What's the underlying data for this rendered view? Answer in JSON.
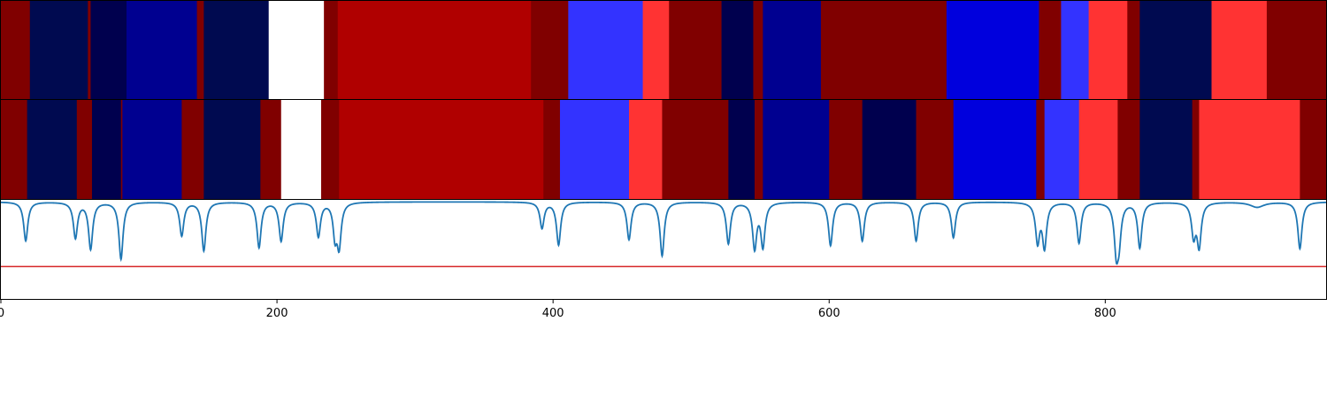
{
  "chart_data": [
    {
      "type": "heatmap",
      "xlim": [
        0,
        960
      ],
      "segments": [
        {
          "start": 0,
          "end": 21,
          "color": "#800000"
        },
        {
          "start": 21,
          "end": 63,
          "color": "#000a50"
        },
        {
          "start": 63,
          "end": 65,
          "color": "#800000"
        },
        {
          "start": 65,
          "end": 91,
          "color": "#00004e"
        },
        {
          "start": 91,
          "end": 142,
          "color": "#000090"
        },
        {
          "start": 142,
          "end": 147,
          "color": "#800000"
        },
        {
          "start": 147,
          "end": 194,
          "color": "#000a50"
        },
        {
          "start": 194,
          "end": 234,
          "color": "#ffffff"
        },
        {
          "start": 234,
          "end": 244,
          "color": "#800000"
        },
        {
          "start": 244,
          "end": 384,
          "color": "#b00000"
        },
        {
          "start": 384,
          "end": 411,
          "color": "#800000"
        },
        {
          "start": 411,
          "end": 465,
          "color": "#3333ff"
        },
        {
          "start": 465,
          "end": 484,
          "color": "#ff3333"
        },
        {
          "start": 484,
          "end": 522,
          "color": "#800000"
        },
        {
          "start": 522,
          "end": 545,
          "color": "#00004e"
        },
        {
          "start": 545,
          "end": 552,
          "color": "#800000"
        },
        {
          "start": 552,
          "end": 594,
          "color": "#000090"
        },
        {
          "start": 594,
          "end": 685,
          "color": "#800000"
        },
        {
          "start": 685,
          "end": 752,
          "color": "#0000dd"
        },
        {
          "start": 752,
          "end": 768,
          "color": "#800000"
        },
        {
          "start": 768,
          "end": 788,
          "color": "#3333ff"
        },
        {
          "start": 788,
          "end": 816,
          "color": "#ff3333"
        },
        {
          "start": 816,
          "end": 825,
          "color": "#800000"
        },
        {
          "start": 825,
          "end": 877,
          "color": "#000a50"
        },
        {
          "start": 877,
          "end": 917,
          "color": "#ff3333"
        },
        {
          "start": 917,
          "end": 960,
          "color": "#800000"
        }
      ]
    },
    {
      "type": "heatmap",
      "xlim": [
        0,
        960
      ],
      "segments": [
        {
          "start": 0,
          "end": 19,
          "color": "#800000"
        },
        {
          "start": 19,
          "end": 55,
          "color": "#000a50"
        },
        {
          "start": 55,
          "end": 66,
          "color": "#800000"
        },
        {
          "start": 66,
          "end": 87,
          "color": "#00004e"
        },
        {
          "start": 87,
          "end": 88,
          "color": "#800000"
        },
        {
          "start": 88,
          "end": 131,
          "color": "#000090"
        },
        {
          "start": 131,
          "end": 147,
          "color": "#800000"
        },
        {
          "start": 147,
          "end": 188,
          "color": "#000a50"
        },
        {
          "start": 188,
          "end": 203,
          "color": "#800000"
        },
        {
          "start": 203,
          "end": 232,
          "color": "#ffffff"
        },
        {
          "start": 232,
          "end": 245,
          "color": "#800000"
        },
        {
          "start": 245,
          "end": 393,
          "color": "#b00000"
        },
        {
          "start": 393,
          "end": 405,
          "color": "#800000"
        },
        {
          "start": 405,
          "end": 455,
          "color": "#3333ff"
        },
        {
          "start": 455,
          "end": 479,
          "color": "#ff3333"
        },
        {
          "start": 479,
          "end": 527,
          "color": "#800000"
        },
        {
          "start": 527,
          "end": 546,
          "color": "#00004e"
        },
        {
          "start": 546,
          "end": 552,
          "color": "#800000"
        },
        {
          "start": 552,
          "end": 600,
          "color": "#000090"
        },
        {
          "start": 600,
          "end": 624,
          "color": "#800000"
        },
        {
          "start": 624,
          "end": 663,
          "color": "#00004e"
        },
        {
          "start": 663,
          "end": 690,
          "color": "#800000"
        },
        {
          "start": 690,
          "end": 750,
          "color": "#0000dd"
        },
        {
          "start": 750,
          "end": 756,
          "color": "#800000"
        },
        {
          "start": 756,
          "end": 781,
          "color": "#3333ff"
        },
        {
          "start": 781,
          "end": 809,
          "color": "#ff3333"
        },
        {
          "start": 809,
          "end": 825,
          "color": "#800000"
        },
        {
          "start": 825,
          "end": 863,
          "color": "#000a50"
        },
        {
          "start": 863,
          "end": 868,
          "color": "#800000"
        },
        {
          "start": 868,
          "end": 941,
          "color": "#ff3333"
        },
        {
          "start": 941,
          "end": 960,
          "color": "#800000"
        }
      ]
    },
    {
      "type": "line",
      "xlim": [
        0,
        960
      ],
      "ylim": [
        -1.5,
        0.03
      ],
      "xticks": [
        0,
        200,
        400,
        600,
        800
      ],
      "grid": false,
      "threshold": {
        "value": -1.0,
        "color": "#d62728"
      },
      "line_color": "#1f77b4",
      "baseline": 0,
      "dips": [
        {
          "x": 18,
          "depth": 0.6,
          "width": 1.8
        },
        {
          "x": 54,
          "depth": 0.55,
          "width": 1.8
        },
        {
          "x": 65,
          "depth": 0.72,
          "width": 1.8
        },
        {
          "x": 87,
          "depth": 0.88,
          "width": 1.8
        },
        {
          "x": 131,
          "depth": 0.52,
          "width": 1.8
        },
        {
          "x": 147,
          "depth": 0.75,
          "width": 1.8
        },
        {
          "x": 187,
          "depth": 0.7,
          "width": 1.8
        },
        {
          "x": 203,
          "depth": 0.6,
          "width": 1.8
        },
        {
          "x": 230,
          "depth": 0.53,
          "width": 1.8
        },
        {
          "x": 242,
          "depth": 0.48,
          "width": 1.6
        },
        {
          "x": 245,
          "depth": 0.66,
          "width": 1.8
        },
        {
          "x": 392,
          "depth": 0.4,
          "width": 1.8
        },
        {
          "x": 404,
          "depth": 0.66,
          "width": 1.8
        },
        {
          "x": 455,
          "depth": 0.58,
          "width": 1.8
        },
        {
          "x": 479,
          "depth": 0.83,
          "width": 1.8
        },
        {
          "x": 527,
          "depth": 0.64,
          "width": 1.8
        },
        {
          "x": 546,
          "depth": 0.7,
          "width": 1.8
        },
        {
          "x": 552,
          "depth": 0.67,
          "width": 1.8
        },
        {
          "x": 601,
          "depth": 0.67,
          "width": 1.8
        },
        {
          "x": 624,
          "depth": 0.6,
          "width": 1.8
        },
        {
          "x": 663,
          "depth": 0.6,
          "width": 1.8
        },
        {
          "x": 690,
          "depth": 0.55,
          "width": 1.8
        },
        {
          "x": 751,
          "depth": 0.6,
          "width": 1.8
        },
        {
          "x": 756,
          "depth": 0.68,
          "width": 1.8
        },
        {
          "x": 781,
          "depth": 0.63,
          "width": 1.8
        },
        {
          "x": 808,
          "depth": 0.7,
          "width": 1.8
        },
        {
          "x": 810,
          "depth": 0.5,
          "width": 1.8
        },
        {
          "x": 825,
          "depth": 0.7,
          "width": 1.8
        },
        {
          "x": 864,
          "depth": 0.5,
          "width": 1.8
        },
        {
          "x": 868,
          "depth": 0.66,
          "width": 1.8
        },
        {
          "x": 910,
          "depth": 0.08,
          "width": 6
        },
        {
          "x": 941,
          "depth": 0.72,
          "width": 1.8
        }
      ]
    }
  ]
}
